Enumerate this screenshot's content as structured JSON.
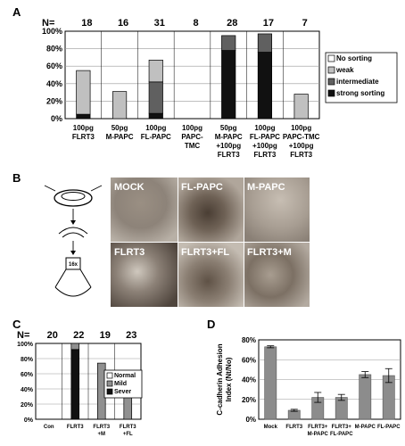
{
  "panels": {
    "A": "A",
    "B": "B",
    "C": "C",
    "D": "D"
  },
  "colors": {
    "strong": "#111111",
    "intermediate": "#606060",
    "weak": "#c0c0c0",
    "none": "#ffffff"
  },
  "chart_data": [
    {
      "panel": "A",
      "type": "bar",
      "stacked": true,
      "n_prefix": "N=",
      "categories": [
        [
          "100pg",
          "FLRT3"
        ],
        [
          "50pg",
          "M-PAPC"
        ],
        [
          "100pg",
          "FL-PAPC"
        ],
        [
          "100pg",
          "PAPC-",
          "TMC"
        ],
        [
          "50pg",
          "M-PAPC",
          "+100pg",
          "FLRT3"
        ],
        [
          "100pg",
          "FL-PAPC",
          "+100pg",
          "FLRT3"
        ],
        [
          "100pg",
          "PAPC-TMC",
          "+100pg",
          "FLRT3"
        ]
      ],
      "n": [
        18,
        16,
        31,
        8,
        28,
        17,
        7
      ],
      "series": [
        {
          "name": "strong sorting",
          "color": "#111111",
          "values": [
            5,
            0,
            6,
            0,
            78,
            76,
            0
          ]
        },
        {
          "name": "intermediate",
          "color": "#606060",
          "values": [
            0,
            0,
            36,
            0,
            17,
            21,
            0
          ]
        },
        {
          "name": "weak",
          "color": "#c0c0c0",
          "values": [
            50,
            31,
            25,
            0,
            0,
            0,
            28
          ]
        },
        {
          "name": "No sorting",
          "color": "#ffffff",
          "values": [
            45,
            69,
            33,
            100,
            5,
            3,
            72
          ]
        }
      ],
      "legend": [
        "No sorting",
        "weak",
        "intermediate",
        "strong sorting"
      ],
      "yticks": [
        "0%",
        "20%",
        "40%",
        "60%",
        "80%",
        "100%"
      ],
      "ylim": [
        0,
        100
      ],
      "grid": true,
      "legend_position": "right"
    },
    {
      "panel": "C",
      "type": "bar",
      "stacked": true,
      "n_prefix": "N=",
      "categories": [
        [
          "Con"
        ],
        [
          "FLRT3"
        ],
        [
          "FLRT3",
          "+M"
        ],
        [
          "FLRT3",
          "+FL"
        ]
      ],
      "n": [
        20,
        22,
        19,
        23
      ],
      "series": [
        {
          "name": "Sever",
          "color": "#111111",
          "values": [
            0,
            92,
            0,
            0
          ]
        },
        {
          "name": "Mild",
          "color": "#909090",
          "values": [
            0,
            8,
            74,
            57
          ]
        },
        {
          "name": "Normal",
          "color": "#ffffff",
          "values": [
            100,
            0,
            26,
            43
          ]
        }
      ],
      "legend": [
        "Normal",
        "Mild",
        "Sever"
      ],
      "yticks": [
        "0%",
        "20%",
        "40%",
        "60%",
        "80%",
        "100%"
      ],
      "ylim": [
        0,
        100
      ],
      "grid": true,
      "legend_position": "right"
    },
    {
      "panel": "D",
      "type": "bar",
      "categories": [
        [
          "Mock"
        ],
        [
          "FLRT3"
        ],
        [
          "FLRT3+",
          "M-PAPC"
        ],
        [
          "FLRT3+",
          "FL-PAPC"
        ],
        [
          "M-PAPC"
        ],
        [
          "FL-PAPC"
        ]
      ],
      "values": [
        73,
        9,
        22,
        22,
        45,
        44
      ],
      "errors": [
        1,
        1,
        5,
        3,
        3,
        7
      ],
      "ylabel": [
        "C-cadherin Adhesion",
        "Index (Nt/No)"
      ],
      "yticks": [
        "0%",
        "20%",
        "40%",
        "60%",
        "80%"
      ],
      "ylim": [
        0,
        80
      ],
      "grid": true
    }
  ],
  "panel_B": {
    "photos": [
      "MOCK",
      "FL-PAPC",
      "M-PAPC",
      "FLRT3",
      "FLRT3+FL",
      "FLRT3+M"
    ],
    "scheme_label": "16x"
  }
}
